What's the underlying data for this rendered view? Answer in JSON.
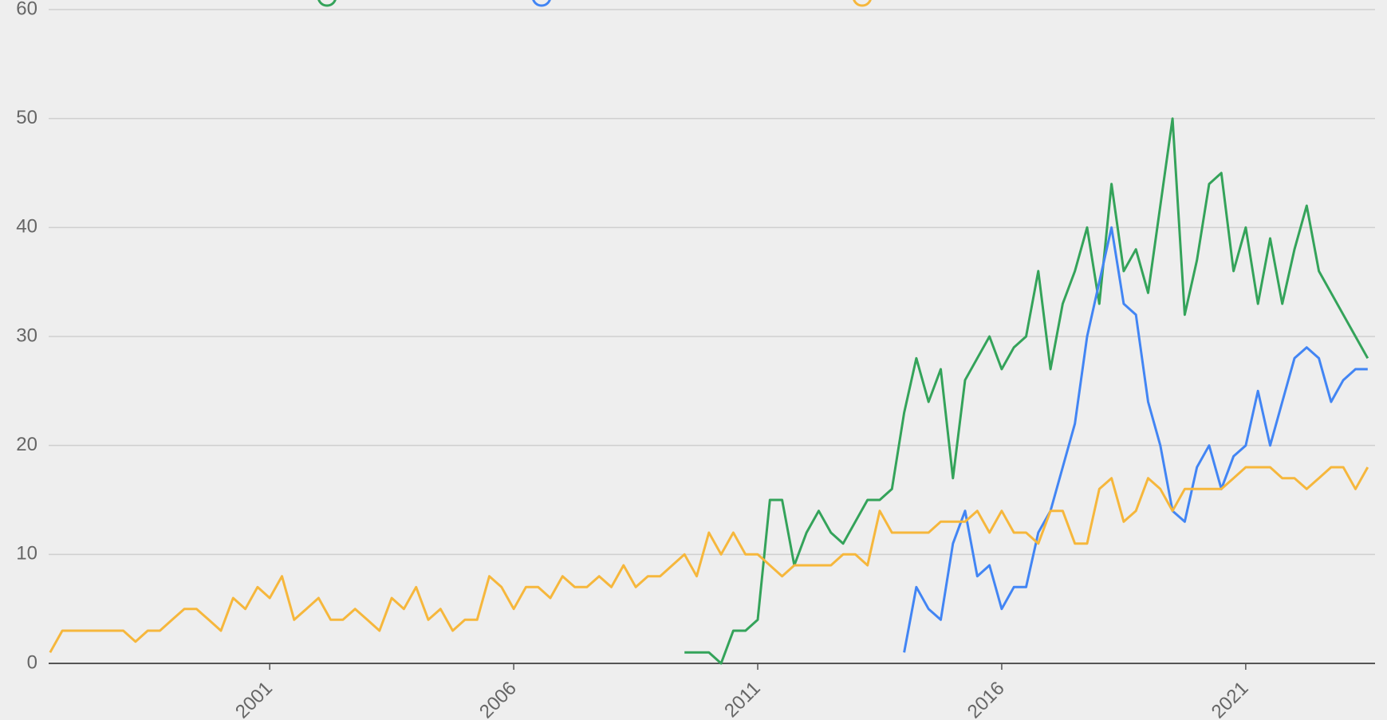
{
  "chart_data": {
    "type": "line",
    "x": [
      1996.5,
      1996.75,
      1997,
      1997.25,
      1997.5,
      1997.75,
      1998,
      1998.25,
      1998.5,
      1998.75,
      1999,
      1999.25,
      1999.5,
      1999.75,
      2000,
      2000.25,
      2000.5,
      2000.75,
      2001,
      2001.25,
      2001.5,
      2001.75,
      2002,
      2002.25,
      2002.5,
      2002.75,
      2003,
      2003.25,
      2003.5,
      2003.75,
      2004,
      2004.25,
      2004.5,
      2004.75,
      2005,
      2005.25,
      2005.5,
      2005.75,
      2006,
      2006.25,
      2006.5,
      2006.75,
      2007,
      2007.25,
      2007.5,
      2007.75,
      2008,
      2008.25,
      2008.5,
      2008.75,
      2009,
      2009.25,
      2009.5,
      2009.75,
      2010,
      2010.25,
      2010.5,
      2010.75,
      2011,
      2011.25,
      2011.5,
      2011.75,
      2012,
      2012.25,
      2012.5,
      2012.75,
      2013,
      2013.25,
      2013.5,
      2013.75,
      2014,
      2014.25,
      2014.5,
      2014.75,
      2015,
      2015.25,
      2015.5,
      2015.75,
      2016,
      2016.25,
      2016.5,
      2016.75,
      2017,
      2017.25,
      2017.5,
      2017.75,
      2018,
      2018.25,
      2018.5,
      2018.75,
      2019,
      2019.25,
      2019.5,
      2019.75,
      2020,
      2020.25,
      2020.5,
      2020.75,
      2021,
      2021.25,
      2021.5,
      2021.75,
      2022,
      2022.25,
      2022.5,
      2022.75,
      2023,
      2023.25,
      2023.5
    ],
    "series": [
      {
        "color": "#34a35a",
        "values": [
          null,
          null,
          null,
          null,
          null,
          null,
          null,
          null,
          null,
          null,
          null,
          null,
          null,
          null,
          null,
          null,
          null,
          null,
          null,
          null,
          null,
          null,
          null,
          null,
          null,
          null,
          null,
          null,
          null,
          null,
          null,
          null,
          null,
          null,
          null,
          null,
          null,
          null,
          null,
          null,
          null,
          null,
          null,
          null,
          null,
          null,
          null,
          null,
          null,
          null,
          null,
          null,
          1,
          1,
          1,
          0,
          3,
          3,
          4,
          15,
          15,
          9,
          12,
          14,
          12,
          11,
          13,
          15,
          15,
          16,
          23,
          28,
          24,
          27,
          17,
          26,
          28,
          30,
          27,
          29,
          30,
          36,
          27,
          33,
          36,
          40,
          33,
          44,
          36,
          38,
          34,
          42,
          50,
          32,
          37,
          44,
          45,
          36,
          40,
          33,
          39,
          33,
          38,
          42,
          36,
          34,
          32,
          30,
          28
        ]
      },
      {
        "color": "#4285f4",
        "values": [
          null,
          null,
          null,
          null,
          null,
          null,
          null,
          null,
          null,
          null,
          null,
          null,
          null,
          null,
          null,
          null,
          null,
          null,
          null,
          null,
          null,
          null,
          null,
          null,
          null,
          null,
          null,
          null,
          null,
          null,
          null,
          null,
          null,
          null,
          null,
          null,
          null,
          null,
          null,
          null,
          null,
          null,
          null,
          null,
          null,
          null,
          null,
          null,
          null,
          null,
          null,
          null,
          null,
          null,
          null,
          null,
          null,
          null,
          null,
          null,
          null,
          null,
          null,
          null,
          null,
          null,
          null,
          null,
          null,
          null,
          1,
          7,
          5,
          4,
          11,
          14,
          8,
          9,
          5,
          7,
          7,
          12,
          14,
          18,
          22,
          30,
          35,
          40,
          33,
          32,
          24,
          20,
          14,
          13,
          18,
          20,
          16,
          19,
          20,
          25,
          20,
          24,
          28,
          29,
          28,
          24,
          26,
          27,
          27
        ]
      },
      {
        "color": "#f6b73c",
        "values": [
          1,
          3,
          3,
          3,
          3,
          3,
          3,
          2,
          3,
          3,
          4,
          5,
          5,
          4,
          3,
          6,
          5,
          7,
          6,
          8,
          4,
          5,
          6,
          4,
          4,
          5,
          4,
          3,
          6,
          5,
          7,
          4,
          5,
          3,
          4,
          4,
          8,
          7,
          5,
          7,
          7,
          6,
          8,
          7,
          7,
          8,
          7,
          9,
          7,
          8,
          8,
          9,
          10,
          8,
          12,
          10,
          12,
          10,
          10,
          9,
          8,
          9,
          9,
          9,
          9,
          10,
          10,
          9,
          14,
          12,
          12,
          12,
          12,
          13,
          13,
          13,
          14,
          12,
          14,
          12,
          12,
          11,
          14,
          14,
          11,
          11,
          16,
          17,
          13,
          14,
          17,
          16,
          14,
          16,
          16,
          16,
          16,
          17,
          18,
          18,
          18,
          17,
          17,
          16,
          17,
          18,
          18,
          16,
          18
        ]
      }
    ],
    "xlim": [
      1996.47,
      2023.65
    ],
    "xticks": [
      2001,
      2006,
      2011,
      2016,
      2021
    ],
    "ylim": [
      0,
      60
    ],
    "yticks": [
      0,
      10,
      20,
      30,
      40,
      50,
      60
    ],
    "grid": true
  }
}
